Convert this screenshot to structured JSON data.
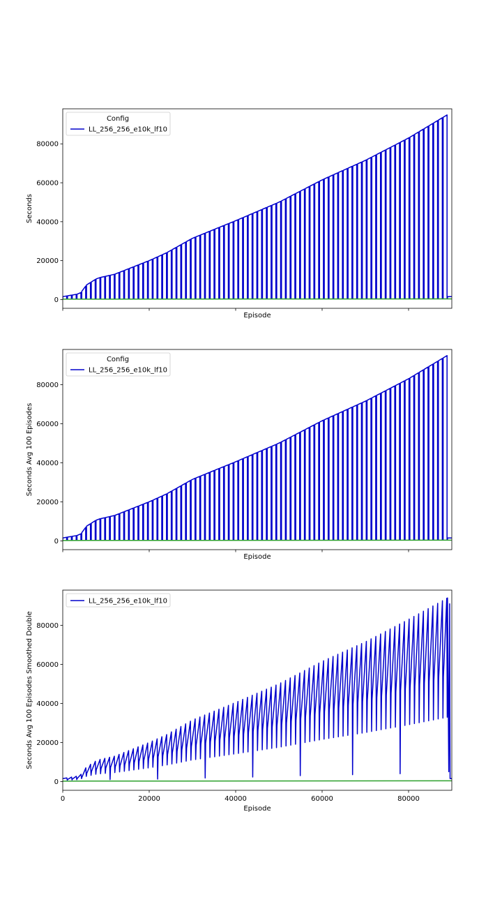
{
  "colors": {
    "series": "#0000cc",
    "baseline": "#2ca02c",
    "axes": "#000000"
  },
  "chart_data": [
    {
      "type": "line",
      "title": "",
      "xlabel": "Episode",
      "ylabel": "Seconds",
      "xlim": [
        0,
        90000
      ],
      "ylim": [
        -4500,
        98000
      ],
      "xticks": [
        0,
        20000,
        40000,
        60000,
        80000
      ],
      "show_xtick_labels": false,
      "yticks": [
        0,
        20000,
        40000,
        60000,
        80000
      ],
      "grid": false,
      "legend": {
        "title": "Config",
        "location": "upper-left",
        "entries": [
          "LL_256_256_e10k_lf10"
        ]
      },
      "series": [
        {
          "name": "LL_256_256_e10k_lf10",
          "color": "#0000cc",
          "pattern": "sawtooth",
          "period": 1100,
          "reset_value": 400,
          "envelope": {
            "x": [
              0,
              4000,
              5500,
              8000,
              12000,
              20000,
              24000,
              30000,
              40000,
              50000,
              60000,
              70000,
              80000,
              89000
            ],
            "y": [
              1500,
              3000,
              7500,
              11000,
              13000,
              20000,
              24000,
              31500,
              40500,
              50000,
              61500,
              71500,
              83000,
              95000
            ]
          },
          "tail": {
            "x_end": 90000,
            "y": 1500
          }
        },
        {
          "name": "baseline",
          "color": "#2ca02c",
          "x": [
            0,
            90000
          ],
          "y": [
            200,
            350
          ]
        }
      ]
    },
    {
      "type": "line",
      "title": "",
      "xlabel": "Episode",
      "ylabel": "Seconds Avg 100 Episodes",
      "xlim": [
        0,
        90000
      ],
      "ylim": [
        -4500,
        98000
      ],
      "xticks": [
        0,
        20000,
        40000,
        60000,
        80000
      ],
      "show_xtick_labels": false,
      "yticks": [
        0,
        20000,
        40000,
        60000,
        80000
      ],
      "grid": false,
      "legend": {
        "title": "Config",
        "location": "upper-left",
        "entries": [
          "LL_256_256_e10k_lf10"
        ]
      },
      "series": [
        {
          "name": "LL_256_256_e10k_lf10",
          "color": "#0000cc",
          "pattern": "sawtooth",
          "period": 1100,
          "reset_value": 400,
          "envelope": {
            "x": [
              0,
              4000,
              5500,
              8000,
              12000,
              20000,
              24000,
              30000,
              40000,
              50000,
              60000,
              70000,
              80000,
              89000
            ],
            "y": [
              1500,
              3000,
              7500,
              11000,
              13000,
              20000,
              24000,
              31500,
              40500,
              50000,
              61500,
              71500,
              83000,
              95000
            ]
          },
          "tail": {
            "x_end": 90000,
            "y": 1500
          }
        },
        {
          "name": "baseline",
          "color": "#2ca02c",
          "x": [
            0,
            90000
          ],
          "y": [
            200,
            350
          ]
        }
      ]
    },
    {
      "type": "line",
      "title": "",
      "xlabel": "Episode",
      "ylabel": "Seconds Avg 100 Episodes Smoothed Double",
      "xlim": [
        0,
        90000
      ],
      "ylim": [
        -4500,
        98000
      ],
      "xticks": [
        0,
        20000,
        40000,
        60000,
        80000
      ],
      "show_xtick_labels": true,
      "yticks": [
        0,
        20000,
        40000,
        60000,
        80000
      ],
      "grid": false,
      "legend": {
        "title": "",
        "location": "upper-left",
        "entries": [
          "LL_256_256_e10k_lf10"
        ]
      },
      "series": [
        {
          "name": "LL_256_256_e10k_lf10",
          "color": "#0000cc",
          "pattern": "sawtooth-smoothed",
          "period": 1100,
          "trough_ratio": 0.35,
          "deep_dips_x": [
            11000,
            22000,
            33000,
            44500,
            55500,
            66800,
            77800
          ],
          "deep_dips_y": [
            1000,
            1200,
            1800,
            2300,
            3000,
            3500,
            4000
          ],
          "envelope": {
            "x": [
              0,
              4000,
              5500,
              8000,
              12000,
              20000,
              24000,
              30000,
              40000,
              50000,
              60000,
              70000,
              80000,
              89000
            ],
            "y": [
              1500,
              3000,
              7500,
              11000,
              13000,
              20000,
              24000,
              31500,
              40500,
              50000,
              61500,
              71500,
              83000,
              94000
            ]
          },
          "tail": {
            "x_end": 90000,
            "y": 1500
          }
        },
        {
          "name": "baseline",
          "color": "#2ca02c",
          "x": [
            0,
            90000
          ],
          "y": [
            200,
            350
          ]
        }
      ]
    }
  ]
}
